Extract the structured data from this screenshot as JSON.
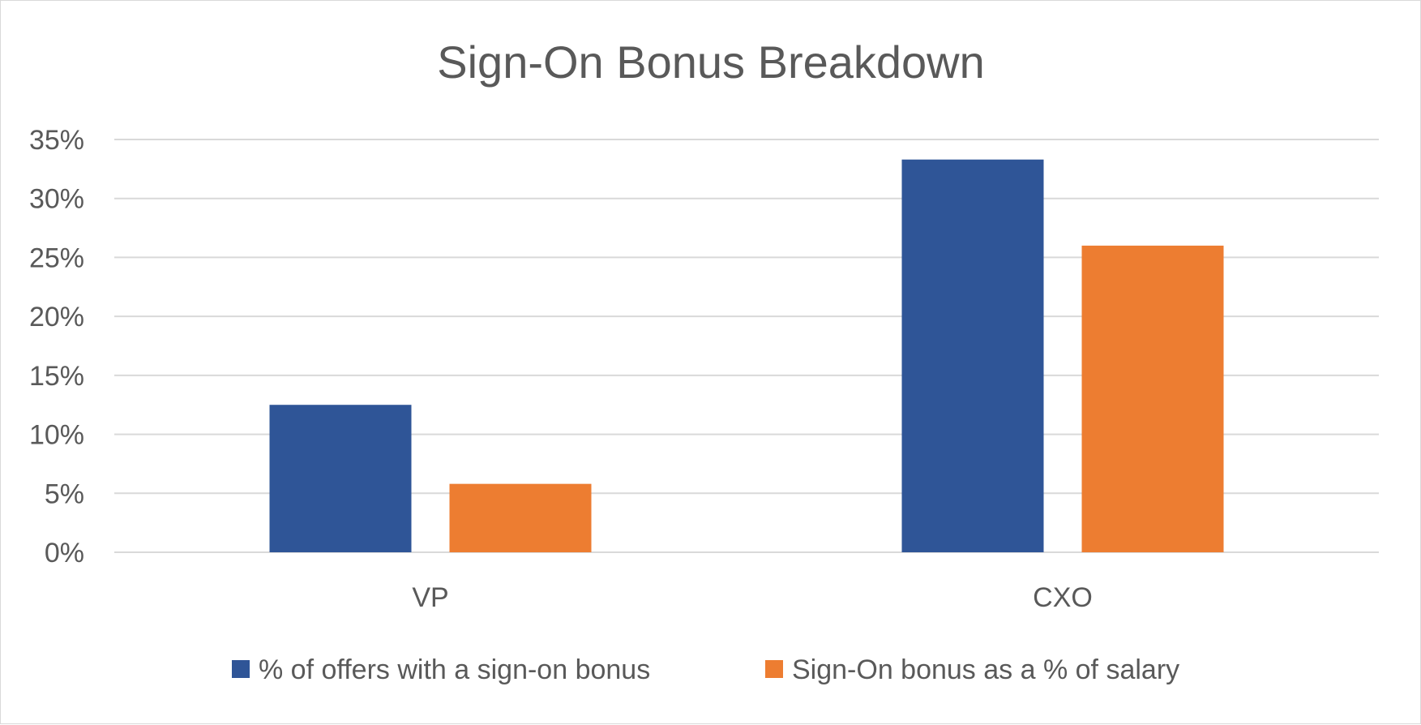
{
  "chart_data": {
    "type": "bar",
    "title": "Sign-On Bonus Breakdown",
    "categories": [
      "VP",
      "CXO"
    ],
    "series": [
      {
        "name": "% of offers with a sign-on bonus",
        "values": [
          12.5,
          33.3
        ],
        "color": "#2f5597"
      },
      {
        "name": "Sign-On bonus as a % of salary",
        "values": [
          5.8,
          26.0
        ],
        "color": "#ed7d31"
      }
    ],
    "ylim": [
      0,
      35
    ],
    "yticks": [
      "0%",
      "5%",
      "10%",
      "15%",
      "20%",
      "25%",
      "30%",
      "35%"
    ],
    "grid": true,
    "legend_position": "bottom"
  }
}
